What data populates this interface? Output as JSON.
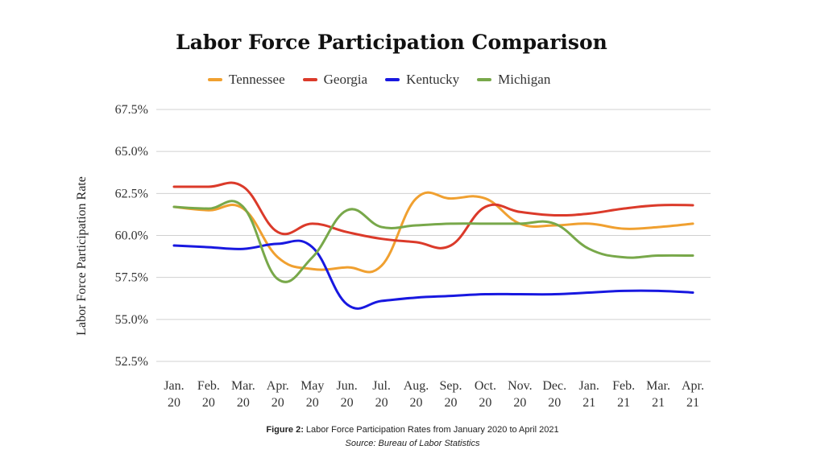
{
  "chart_data": {
    "type": "line",
    "title": "Labor Force Participation Comparison",
    "ylabel": "Labor Force Participation Rate",
    "xlabel": "",
    "ylim": [
      52.5,
      67.5
    ],
    "yticks": [
      "67.5%",
      "65.0%",
      "62.5%",
      "60.0%",
      "57.5%",
      "55.0%",
      "52.5%"
    ],
    "ytick_values": [
      67.5,
      65.0,
      62.5,
      60.0,
      57.5,
      55.0,
      52.5
    ],
    "grid": "horizontal",
    "legend_position": "top-center",
    "categories": [
      [
        "Jan.",
        "20"
      ],
      [
        "Feb.",
        "20"
      ],
      [
        "Mar.",
        "20"
      ],
      [
        "Apr.",
        "20"
      ],
      [
        "May",
        "20"
      ],
      [
        "Jun.",
        "20"
      ],
      [
        "Jul.",
        "20"
      ],
      [
        "Aug.",
        "20"
      ],
      [
        "Sep.",
        "20"
      ],
      [
        "Oct.",
        "20"
      ],
      [
        "Nov.",
        "20"
      ],
      [
        "Dec.",
        "20"
      ],
      [
        "Jan.",
        "21"
      ],
      [
        "Feb.",
        "21"
      ],
      [
        "Mar.",
        "21"
      ],
      [
        "Apr.",
        "21"
      ]
    ],
    "series": [
      {
        "name": "Tennessee",
        "color": "#F0A030",
        "values": [
          61.7,
          61.5,
          61.6,
          58.7,
          58.0,
          58.1,
          58.2,
          62.2,
          62.2,
          62.2,
          60.7,
          60.6,
          60.7,
          60.4,
          60.5,
          60.7
        ]
      },
      {
        "name": "Georgia",
        "color": "#DB3A2A",
        "values": [
          62.9,
          62.9,
          62.9,
          60.2,
          60.7,
          60.2,
          59.8,
          59.6,
          59.4,
          61.7,
          61.4,
          61.2,
          61.3,
          61.6,
          61.8,
          61.8
        ]
      },
      {
        "name": "Kentucky",
        "color": "#1818E0",
        "values": [
          59.4,
          59.3,
          59.2,
          59.5,
          59.3,
          55.9,
          56.1,
          56.3,
          56.4,
          56.5,
          56.5,
          56.5,
          56.6,
          56.7,
          56.7,
          56.6
        ]
      },
      {
        "name": "Michigan",
        "color": "#78A84A",
        "values": [
          61.7,
          61.6,
          61.7,
          57.4,
          58.7,
          61.5,
          60.5,
          60.6,
          60.7,
          60.7,
          60.7,
          60.7,
          59.2,
          58.7,
          58.8,
          58.8
        ]
      }
    ]
  },
  "caption": {
    "label": "Figure 2:",
    "text": "Labor Force Participation Rates from January 2020 to April 2021",
    "source": "Source: Bureau of Labor Statistics"
  }
}
